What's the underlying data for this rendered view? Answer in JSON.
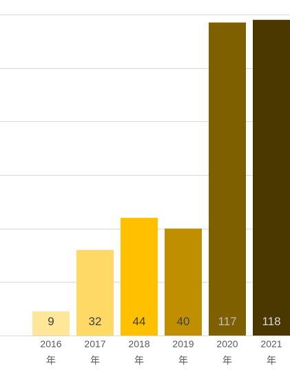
{
  "chart_data": {
    "type": "bar",
    "categories": [
      "2016\n年",
      "2017\n年",
      "2018\n年",
      "2019\n年",
      "2020\n年",
      "2021\n年"
    ],
    "values": [
      9,
      32,
      44,
      40,
      117,
      118
    ],
    "bar_colors": [
      "#FFE699",
      "#FFD966",
      "#FFC000",
      "#BF8F00",
      "#7F6000",
      "#4A3800"
    ],
    "label_colors": [
      "#404040",
      "#404040",
      "#404040",
      "#404040",
      "#BFBFBF",
      "#D9D9D9"
    ],
    "ylim": [
      0,
      120
    ],
    "grid": true,
    "gridline_values": [
      0,
      20,
      40,
      60,
      80,
      100,
      120
    ],
    "gridline_color": "#D9D9D9",
    "title": "",
    "xlabel": "",
    "ylabel": ""
  }
}
